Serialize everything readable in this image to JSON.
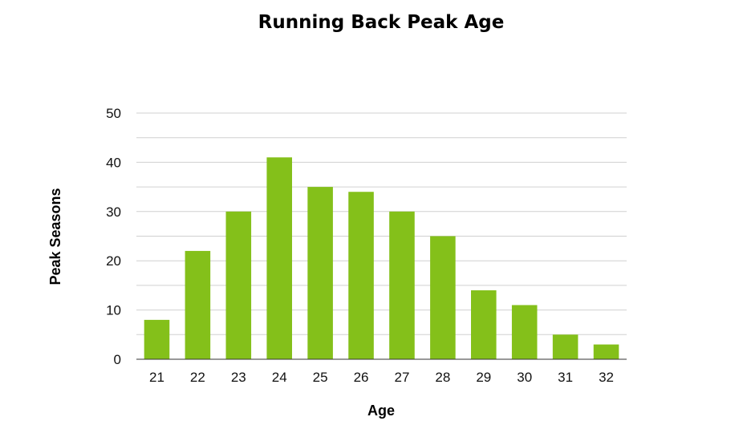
{
  "colors": {
    "bar": "#84c01a",
    "gridline": "#d0d0d0",
    "axis_line": "#333333",
    "text": "#000000"
  },
  "chart_data": {
    "type": "bar",
    "title": "Running Back Peak Age",
    "xlabel": "Age",
    "ylabel": "Peak Seasons",
    "categories": [
      "21",
      "22",
      "23",
      "24",
      "25",
      "26",
      "27",
      "28",
      "29",
      "30",
      "31",
      "32"
    ],
    "values": [
      8,
      22,
      30,
      41,
      35,
      34,
      30,
      25,
      14,
      11,
      5,
      3
    ],
    "ylim": [
      0,
      50
    ],
    "yticks": [
      0,
      10,
      20,
      30,
      40,
      50
    ],
    "minor_gridlines": true,
    "grid": true,
    "legend": "none"
  }
}
